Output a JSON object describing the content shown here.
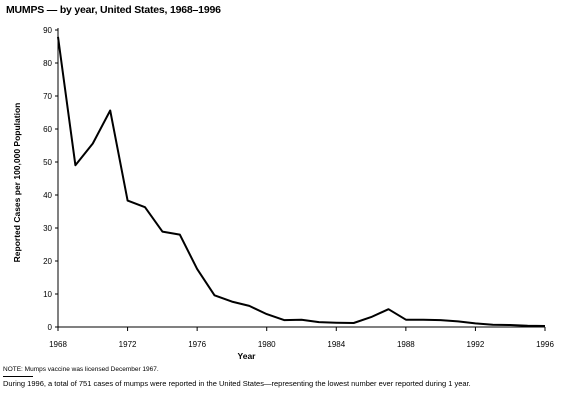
{
  "title": "MUMPS — by year, United States, 1968–1996",
  "note": "NOTE: Mumps vaccine was licensed December 1967.",
  "footnote": "During 1996, a total of 751 cases of mumps were reported in the United States—representing the lowest number ever reported during 1 year.",
  "chart_data": {
    "type": "line",
    "title": "MUMPS — by year, United States, 1968–1996",
    "xlabel": "Year",
    "ylabel": "Reported Cases per 100,000 Population",
    "xlim": [
      1968,
      1996
    ],
    "ylim": [
      0,
      90
    ],
    "x_ticks": [
      1968,
      1972,
      1976,
      1980,
      1984,
      1988,
      1992,
      1996
    ],
    "y_ticks": [
      0,
      10,
      20,
      30,
      40,
      50,
      60,
      70,
      80,
      90
    ],
    "grid": false,
    "line_color": "#000000",
    "series": [
      {
        "x": [
          1968,
          1969,
          1970,
          1971,
          1972,
          1973,
          1974,
          1975,
          1976,
          1977,
          1978,
          1979,
          1980,
          1981,
          1982,
          1983,
          1984,
          1985,
          1986,
          1987,
          1988,
          1989,
          1990,
          1991,
          1992,
          1993,
          1994,
          1995,
          1996
        ],
        "y": [
          87.9,
          49.0,
          55.6,
          65.6,
          38.3,
          36.3,
          28.9,
          28.0,
          17.6,
          9.6,
          7.7,
          6.4,
          3.9,
          2.1,
          2.2,
          1.5,
          1.3,
          1.2,
          3.0,
          5.4,
          2.2,
          2.2,
          2.1,
          1.7,
          1.1,
          0.7,
          0.6,
          0.4,
          0.3
        ]
      }
    ]
  }
}
